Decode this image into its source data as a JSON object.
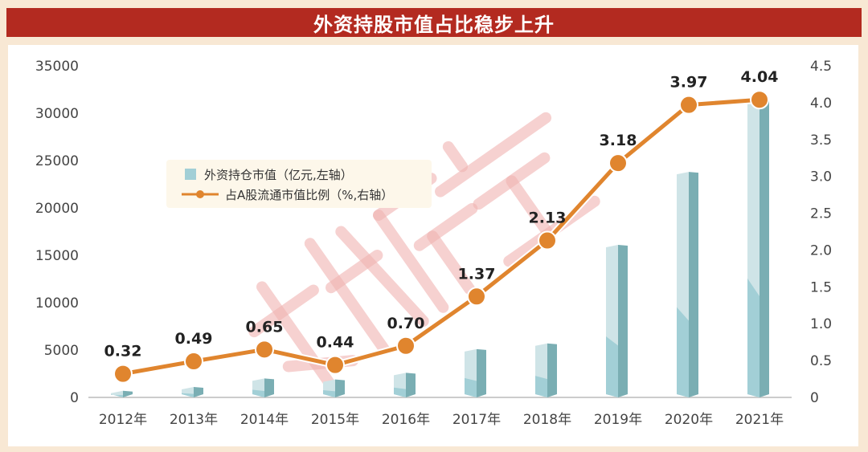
{
  "title": "外资持股市值占比稳步上升",
  "watermark": "数据宝",
  "colors": {
    "title_bg": "#b32a20",
    "bar_light": "#cfe4e7",
    "bar_mid": "#a2cfd6",
    "bar_dark": "#7aaeb3",
    "line": "#e0852e"
  },
  "chart_data": {
    "type": "bar+line",
    "title": "外资持股市值占比稳步上升",
    "categories": [
      "2012年",
      "2013年",
      "2014年",
      "2015年",
      "2016年",
      "2017年",
      "2018年",
      "2019年",
      "2020年",
      "2021年"
    ],
    "series": [
      {
        "name": "外资持仓市值（亿元,左轴）",
        "type": "bar",
        "axis": "left",
        "values": [
          700,
          1100,
          2000,
          1900,
          2600,
          5100,
          5700,
          16100,
          23800,
          31400
        ]
      },
      {
        "name": "占A股流通市值比例（%,右轴）",
        "type": "line",
        "axis": "right",
        "values": [
          0.32,
          0.49,
          0.65,
          0.44,
          0.7,
          1.37,
          2.13,
          3.18,
          3.97,
          4.04
        ],
        "labels": [
          "0.32",
          "0.49",
          "0.65",
          "0.44",
          "0.70",
          "1.37",
          "2.13",
          "3.18",
          "3.97",
          "4.04"
        ]
      }
    ],
    "left_axis": {
      "ylim": [
        0,
        35000
      ],
      "ticks": [
        "0",
        "5000",
        "10000",
        "15000",
        "20000",
        "25000",
        "30000",
        "35000"
      ]
    },
    "right_axis": {
      "ylim": [
        0,
        4.5
      ],
      "ticks": [
        "0",
        "0.5",
        "1.0",
        "1.5",
        "2.0",
        "2.5",
        "3.0",
        "3.5",
        "4.0",
        "4.5"
      ]
    },
    "legend_position": "top-left",
    "grid": false
  }
}
